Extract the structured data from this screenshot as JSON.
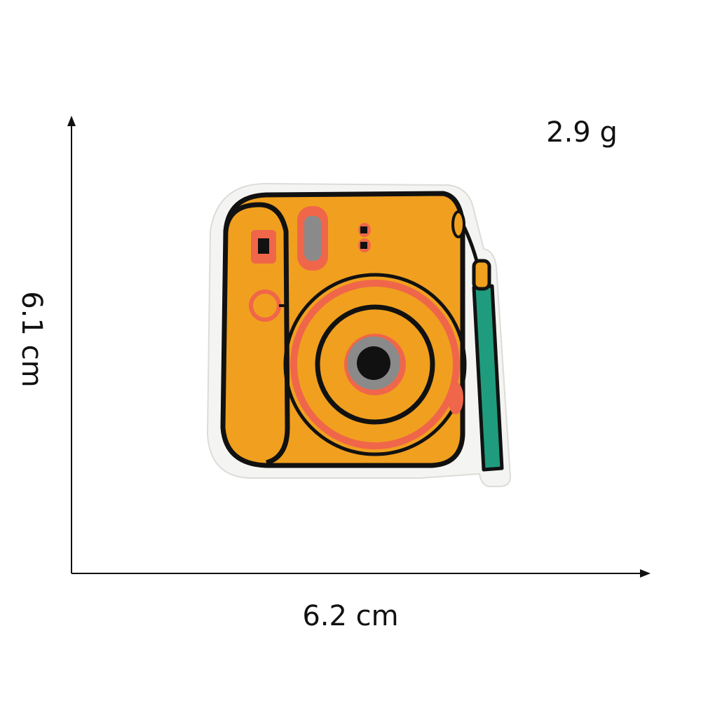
{
  "dimensions": {
    "weight": "2.9 g",
    "width": "6.2 cm",
    "height": "6.1 cm"
  },
  "product": {
    "icon": "instant-camera-icon",
    "colors": {
      "body": "#f0a01e",
      "outline": "#111111",
      "accent_ring": "#f0664a",
      "lens_gray": "#8a8a8a",
      "strap": "#1f9c7e",
      "border": "#f4f4f2"
    }
  }
}
